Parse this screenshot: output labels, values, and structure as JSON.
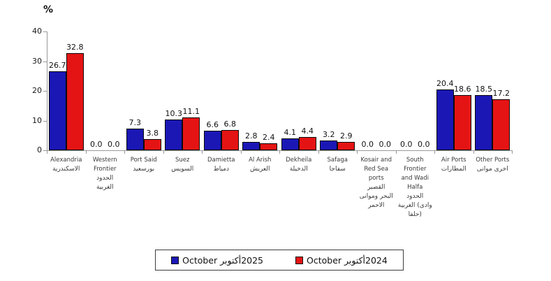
{
  "chart_data": {
    "type": "bar",
    "title": "",
    "y_axis_unit": "%",
    "xlabel": "",
    "ylabel": "%",
    "ylim": [
      0,
      40
    ],
    "y_ticks": [
      0,
      10,
      20,
      30,
      40
    ],
    "grid": false,
    "legend_position": "bottom-center",
    "categories": [
      {
        "en": "Alexandria",
        "ar": "الاسكندرية"
      },
      {
        "en": "Western Frontier",
        "ar": "الحدود ‎الغربية"
      },
      {
        "en": "Port Said",
        "ar": "بورسعيد"
      },
      {
        "en": "Suez",
        "ar": "السويس"
      },
      {
        "en": "Damietta",
        "ar": "دمياط"
      },
      {
        "en": "Al Arish",
        "ar": "العريش"
      },
      {
        "en": "Dekheila",
        "ar": "الدخيلة"
      },
      {
        "en": "Safaga",
        "ar": "سفاجا"
      },
      {
        "en": "Kosair and Red Sea ports",
        "ar": "القصير ‎وموانى ‎البحر ‎الاحمر"
      },
      {
        "en": "South Frontier and Wadi Halfa",
        "ar": "الحدود ‎الغربية ‎(وادى ‎حلفا)"
      },
      {
        "en": "Air Ports",
        "ar": "المطارات"
      },
      {
        "en": "Other Ports",
        "ar": "موانى ‎اخرى"
      }
    ],
    "series": [
      {
        "name": "October أكتوبر‎2025",
        "color": "#1A17B5",
        "values": [
          26.7,
          0.0,
          7.3,
          10.3,
          6.6,
          2.8,
          4.1,
          3.2,
          0.0,
          0.0,
          20.4,
          18.5
        ]
      },
      {
        "name": "October أكتوبر‎2024",
        "color": "#E51414",
        "values": [
          32.8,
          0.0,
          3.8,
          11.1,
          6.8,
          2.4,
          4.4,
          2.9,
          0.0,
          0.0,
          18.6,
          17.2
        ]
      }
    ],
    "style": {
      "axis_color": "#999999",
      "value_label_color": "#111111",
      "category_label_color": "#3a3a3a",
      "legend_border_color": "#3d3d3d"
    }
  }
}
